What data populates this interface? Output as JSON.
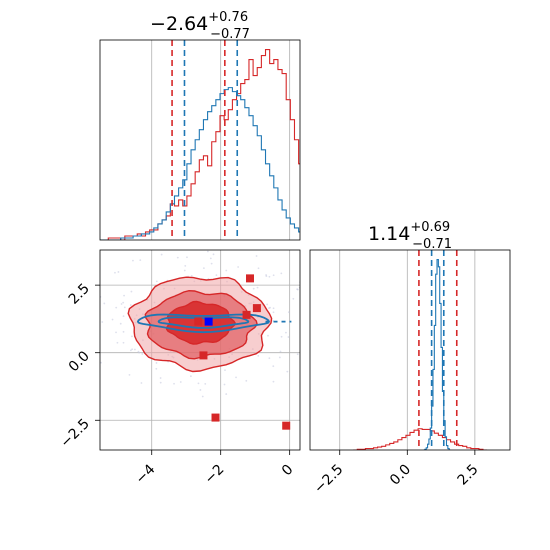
{
  "chart_data": {
    "type": "corner",
    "grid": true,
    "colors": {
      "red": "#d62728",
      "blue": "#1f77b4",
      "light_red": "#f0a6a8",
      "mid_red": "#e05c5f",
      "marker_blue": "#0000ff"
    },
    "panels": [
      {
        "id": "p0",
        "type": "histogram",
        "title": {
          "value": "−2.64",
          "sup": "+0.76",
          "sub": "−0.77"
        },
        "xlim": [
          -5.5,
          0.3
        ],
        "xticks": [
          -4,
          -2,
          0
        ],
        "quantile_lines": {
          "red": [
            -3.41,
            -1.88
          ],
          "blue": [
            -3.05,
            -1.52
          ]
        },
        "series": [
          {
            "color": "red",
            "bin_start": -5.5,
            "bin_width": 0.12,
            "counts": [
              0,
              0,
              1,
              1,
              1,
              0,
              2,
              2,
              2,
              3,
              2,
              4,
              5,
              5,
              8,
              10,
              12,
              18,
              17,
              20,
              17,
              22,
              28,
              34,
              40,
              42,
              37,
              49,
              54,
              62,
              60,
              65,
              70,
              73,
              78,
              80,
              90,
              82,
              86,
              92,
              95,
              88,
              90,
              85,
              83,
              70,
              60,
              50,
              38,
              25,
              15,
              10,
              7,
              5,
              4,
              3,
              2,
              2,
              1,
              0
            ]
          },
          {
            "color": "blue",
            "bin_start": -5.5,
            "bin_width": 0.12,
            "counts": [
              0,
              0,
              0,
              0,
              0,
              1,
              1,
              1,
              2,
              2,
              3,
              3,
              4,
              6,
              8,
              10,
              14,
              18,
              22,
              26,
              30,
              38,
              45,
              50,
              55,
              60,
              64,
              67,
              70,
              73,
              75,
              76,
              74,
              72,
              70,
              66,
              62,
              57,
              52,
              45,
              38,
              32,
              26,
              20,
              15,
              11,
              8,
              6,
              4,
              3,
              2,
              2,
              1,
              1,
              1,
              0,
              0,
              0,
              0,
              0
            ]
          }
        ]
      },
      {
        "id": "p1",
        "type": "scatter_contour",
        "xlim": [
          -5.5,
          0.3
        ],
        "ylim": [
          -3.6,
          3.8
        ],
        "xticks": [
          -4,
          -2,
          0
        ],
        "yticks": [
          2.5,
          0.0,
          -2.5
        ],
        "red_markers": [
          {
            "x": -1.15,
            "y": 2.75
          },
          {
            "x": -0.95,
            "y": 1.65
          },
          {
            "x": -1.25,
            "y": 1.4
          },
          {
            "x": -2.65,
            "y": 1.15
          },
          {
            "x": -2.5,
            "y": -0.1
          },
          {
            "x": -2.15,
            "y": -2.4
          },
          {
            "x": -0.1,
            "y": -2.7
          }
        ],
        "blue_marker": {
          "x": -2.35,
          "y": 1.15
        },
        "red_contours": [
          {
            "cx": -2.6,
            "cy": 1.1,
            "rx": 2.0,
            "ry": 1.7
          },
          {
            "cx": -2.6,
            "cy": 1.05,
            "rx": 1.55,
            "ry": 1.2
          },
          {
            "cx": -2.6,
            "cy": 1.1,
            "rx": 0.95,
            "ry": 0.75
          }
        ],
        "blue_contours": [
          {
            "cx": -2.5,
            "cy": 1.15,
            "rx": 1.9,
            "ry": 0.3
          },
          {
            "cx": -2.5,
            "cy": 1.15,
            "rx": 1.3,
            "ry": 0.18
          }
        ]
      },
      {
        "id": "p2",
        "type": "histogram",
        "title": {
          "value": "1.14",
          "sup": "+0.69",
          "sub": "−0.71"
        },
        "xlim": [
          -3.6,
          3.8
        ],
        "xticks": [
          -2.5,
          0.0,
          2.5
        ],
        "tick_labels": [
          "−2.5",
          "0.0",
          "2.5"
        ],
        "quantile_lines": {
          "red": [
            0.43,
            1.83
          ],
          "blue": [
            0.9,
            1.35
          ]
        },
        "series": [
          {
            "color": "red",
            "bin_start": -2.0,
            "bin_width": 0.15,
            "counts": [
              0,
              1,
              1,
              2,
              2,
              3,
              4,
              5,
              7,
              9,
              11,
              14,
              17,
              20,
              24,
              27,
              29,
              28,
              28,
              26,
              23,
              20,
              17,
              14,
              11,
              8,
              6,
              5,
              3,
              2,
              2,
              1,
              0
            ]
          },
          {
            "color": "blue",
            "bin_start": 0.6,
            "bin_width": 0.05,
            "counts": [
              0,
              1,
              3,
              8,
              15,
              30,
              60,
              110,
              170,
              240,
              260,
              250,
              200,
              140,
              80,
              40,
              18,
              6,
              2,
              0
            ]
          }
        ]
      }
    ]
  }
}
